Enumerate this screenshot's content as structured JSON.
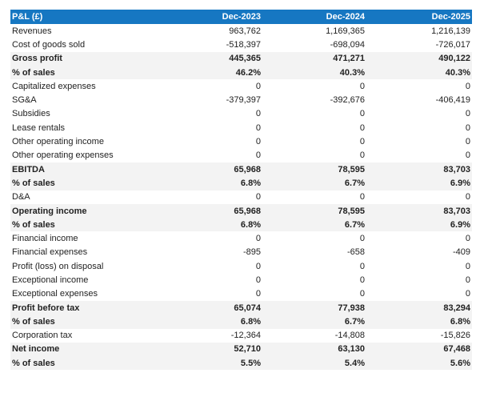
{
  "header": {
    "title": "P&L (£)",
    "columns": [
      "Dec-2023",
      "Dec-2024",
      "Dec-2025"
    ]
  },
  "colors": {
    "header_bg": "#1677c2",
    "bold_row_bg": "#f3f3f3"
  },
  "rows": [
    {
      "label": "Revenues",
      "values": [
        "963,762",
        "1,169,365",
        "1,216,139"
      ],
      "bold": false
    },
    {
      "label": "Cost of goods sold",
      "values": [
        "-518,397",
        "-698,094",
        "-726,017"
      ],
      "bold": false
    },
    {
      "label": "Gross profit",
      "values": [
        "445,365",
        "471,271",
        "490,122"
      ],
      "bold": true
    },
    {
      "label": "% of sales",
      "values": [
        "46.2%",
        "40.3%",
        "40.3%"
      ],
      "bold": true
    },
    {
      "label": "Capitalized expenses",
      "values": [
        "0",
        "0",
        "0"
      ],
      "bold": false
    },
    {
      "label": "SG&A",
      "values": [
        "-379,397",
        "-392,676",
        "-406,419"
      ],
      "bold": false
    },
    {
      "label": "Subsidies",
      "values": [
        "0",
        "0",
        "0"
      ],
      "bold": false
    },
    {
      "label": "Lease rentals",
      "values": [
        "0",
        "0",
        "0"
      ],
      "bold": false
    },
    {
      "label": "Other operating income",
      "values": [
        "0",
        "0",
        "0"
      ],
      "bold": false
    },
    {
      "label": "Other operating expenses",
      "values": [
        "0",
        "0",
        "0"
      ],
      "bold": false
    },
    {
      "label": "EBITDA",
      "values": [
        "65,968",
        "78,595",
        "83,703"
      ],
      "bold": true
    },
    {
      "label": "% of sales",
      "values": [
        "6.8%",
        "6.7%",
        "6.9%"
      ],
      "bold": true
    },
    {
      "label": "D&A",
      "values": [
        "0",
        "0",
        "0"
      ],
      "bold": false
    },
    {
      "label": "Operating income",
      "values": [
        "65,968",
        "78,595",
        "83,703"
      ],
      "bold": true
    },
    {
      "label": "% of sales",
      "values": [
        "6.8%",
        "6.7%",
        "6.9%"
      ],
      "bold": true
    },
    {
      "label": "Financial income",
      "values": [
        "0",
        "0",
        "0"
      ],
      "bold": false
    },
    {
      "label": "Financial expenses",
      "values": [
        "-895",
        "-658",
        "-409"
      ],
      "bold": false
    },
    {
      "label": "Profit (loss) on disposal",
      "values": [
        "0",
        "0",
        "0"
      ],
      "bold": false
    },
    {
      "label": "Exceptional income",
      "values": [
        "0",
        "0",
        "0"
      ],
      "bold": false
    },
    {
      "label": "Exceptional expenses",
      "values": [
        "0",
        "0",
        "0"
      ],
      "bold": false
    },
    {
      "label": "Profit before tax",
      "values": [
        "65,074",
        "77,938",
        "83,294"
      ],
      "bold": true
    },
    {
      "label": "% of sales",
      "values": [
        "6.8%",
        "6.7%",
        "6.8%"
      ],
      "bold": true
    },
    {
      "label": "Corporation tax",
      "values": [
        "-12,364",
        "-14,808",
        "-15,826"
      ],
      "bold": false
    },
    {
      "label": "Net income",
      "values": [
        "52,710",
        "63,130",
        "67,468"
      ],
      "bold": true
    },
    {
      "label": "% of sales",
      "values": [
        "5.5%",
        "5.4%",
        "5.6%"
      ],
      "bold": true
    }
  ]
}
